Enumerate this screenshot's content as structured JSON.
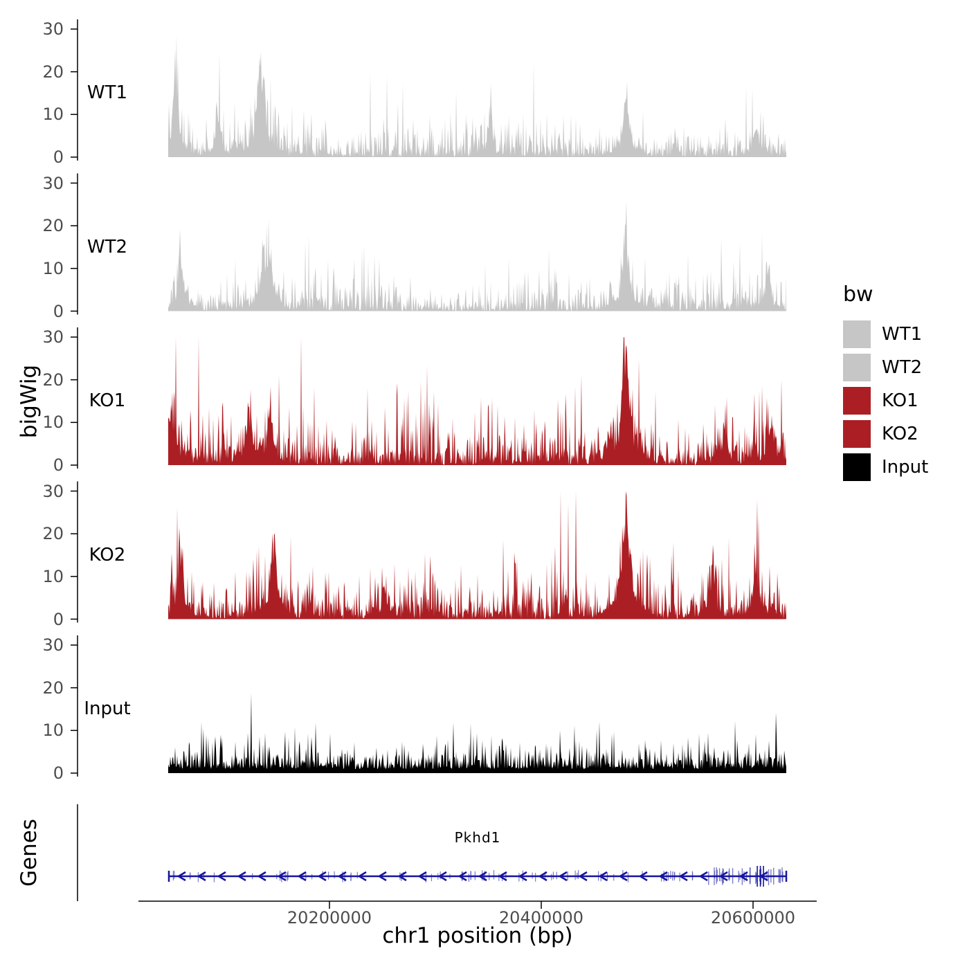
{
  "chart_data": {
    "type": "area",
    "description": "Genome browser style bigWig coverage tracks (ChIP-seq WT1, WT2, KO1, KO2, Input) over a chr1 region with the Pkhd1 gene model below",
    "x_axis": {
      "label": "chr1 position (bp)",
      "range": [
        20047713,
        20632026
      ],
      "ticks": [
        20200000,
        20400000,
        20600000
      ],
      "tick_labels": [
        "20200000",
        "20400000",
        "20600000"
      ]
    },
    "y_axis": {
      "label": "bigWig",
      "range": [
        0,
        30
      ],
      "ticks": [
        0,
        10,
        20,
        30
      ],
      "tick_labels": [
        "0",
        "10",
        "20",
        "30"
      ]
    },
    "genes_axis_label": "Genes",
    "tracks": [
      {
        "name": "WT1",
        "color": "#c6c6c6",
        "seed": 11,
        "mean": 2.8,
        "floor": 0,
        "env_lo": 0.55,
        "env_hi": 1.4,
        "peaks": [
          {
            "x": 0.013,
            "h": 18,
            "w": 3
          },
          {
            "x": 0.08,
            "h": 7,
            "w": 3
          },
          {
            "x": 0.148,
            "h": 16,
            "w": 4
          },
          {
            "x": 0.155,
            "h": 10,
            "w": 2
          },
          {
            "x": 0.52,
            "h": 6,
            "w": 3
          },
          {
            "x": 0.74,
            "h": 12,
            "w": 4
          },
          {
            "x": 0.95,
            "h": 6,
            "w": 3
          }
        ]
      },
      {
        "name": "WT2",
        "color": "#c6c6c6",
        "seed": 22,
        "mean": 2.8,
        "floor": 0,
        "env_lo": 0.55,
        "env_hi": 1.4,
        "peaks": [
          {
            "x": 0.02,
            "h": 12,
            "w": 3
          },
          {
            "x": 0.155,
            "h": 11,
            "w": 4
          },
          {
            "x": 0.165,
            "h": 8,
            "w": 3
          },
          {
            "x": 0.74,
            "h": 15,
            "w": 4
          },
          {
            "x": 0.97,
            "h": 9,
            "w": 3
          }
        ]
      },
      {
        "name": "KO1",
        "color": "#ab1f24",
        "seed": 33,
        "mean": 3.6,
        "floor": 0,
        "env_lo": 0.55,
        "env_hi": 1.35,
        "peaks": [
          {
            "x": 0.005,
            "h": 11,
            "w": 4
          },
          {
            "x": 0.13,
            "h": 11,
            "w": 4
          },
          {
            "x": 0.165,
            "h": 12,
            "w": 3
          },
          {
            "x": 0.74,
            "h": 24,
            "w": 5
          },
          {
            "x": 0.9,
            "h": 7,
            "w": 3
          },
          {
            "x": 0.975,
            "h": 9,
            "w": 4
          }
        ]
      },
      {
        "name": "KO2",
        "color": "#ab1f24",
        "seed": 44,
        "mean": 3.6,
        "floor": 0,
        "env_lo": 0.55,
        "env_hi": 1.35,
        "peaks": [
          {
            "x": 0.02,
            "h": 15,
            "w": 3
          },
          {
            "x": 0.17,
            "h": 13,
            "w": 4
          },
          {
            "x": 0.35,
            "h": 6,
            "w": 3
          },
          {
            "x": 0.74,
            "h": 23,
            "w": 5
          },
          {
            "x": 0.88,
            "h": 8,
            "w": 3
          },
          {
            "x": 0.95,
            "h": 10,
            "w": 4
          }
        ]
      },
      {
        "name": "Input",
        "color": "#000000",
        "seed": 55,
        "mean": 2.3,
        "floor": 0.9,
        "env_lo": 0.8,
        "env_hi": 1.2,
        "peaks": []
      }
    ],
    "gene_track": {
      "gene_name": "Pkhd1",
      "strand": "-",
      "arrow_direction": "left",
      "line_color": "#15159e",
      "exon_color": "#5050b8",
      "seed": 77
    }
  },
  "legend": {
    "title": "bw",
    "entries": [
      {
        "label": "WT1",
        "color": "#c6c6c6"
      },
      {
        "label": "WT2",
        "color": "#c6c6c6"
      },
      {
        "label": "KO1",
        "color": "#ab1f24"
      },
      {
        "label": "KO2",
        "color": "#ab1f24"
      },
      {
        "label": "Input",
        "color": "#000000"
      }
    ]
  }
}
